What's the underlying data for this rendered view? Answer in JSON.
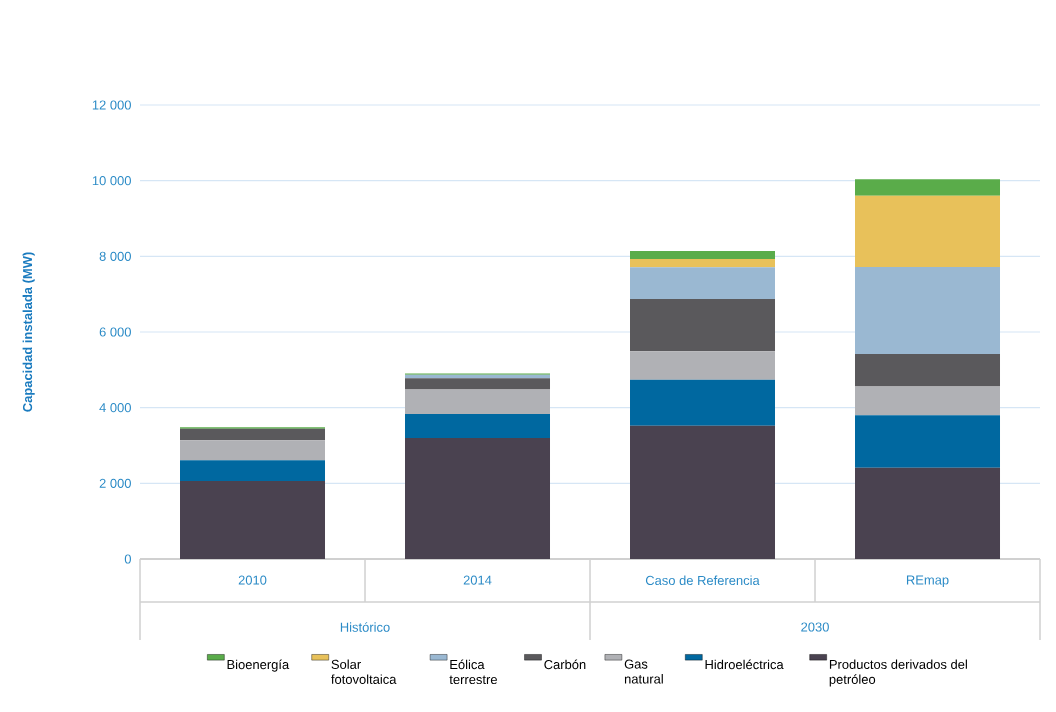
{
  "chart_data": {
    "type": "bar",
    "stacked": true,
    "ylabel": "Capacidad instalada (MW)",
    "categories": [
      "2010",
      "2014",
      "Caso de Referencia",
      "REmap"
    ],
    "annotations": [
      "Histórico",
      "2030"
    ],
    "series": [
      {
        "name": "Productos derivados del petróleo",
        "color": "#4a4250",
        "values": [
          2060,
          3200,
          3520,
          2410
        ]
      },
      {
        "name": "Hidroeléctrica",
        "color": "#0068a0",
        "values": [
          550,
          630,
          1220,
          1390
        ]
      },
      {
        "name": "Gas natural",
        "color": "#b0b1b5",
        "values": [
          530,
          650,
          750,
          760
        ]
      },
      {
        "name": "Carbón",
        "color": "#5a595c",
        "values": [
          300,
          300,
          1380,
          860
        ]
      },
      {
        "name": "Eólica terrestre",
        "color": "#9ab8d2",
        "values": [
          0,
          90,
          840,
          2300
        ]
      },
      {
        "name": "Solar fotovoltaica",
        "color": "#e8c15a",
        "values": [
          0,
          0,
          220,
          1880
        ]
      },
      {
        "name": "Bioenergía",
        "color": "#5aac4a",
        "values": [
          40,
          30,
          210,
          440
        ]
      }
    ],
    "ylim": [
      0,
      12000
    ],
    "yticks": [
      {
        "value": 0,
        "label": "0"
      },
      {
        "value": 2000,
        "label": "2 000"
      },
      {
        "value": 4000,
        "label": "4 000"
      },
      {
        "value": 6000,
        "label": "6 000"
      },
      {
        "value": 8000,
        "label": "8 000"
      },
      {
        "value": 10000,
        "label": "10 000"
      },
      {
        "value": 12000,
        "label": "12 000"
      }
    ],
    "grid": "y",
    "legend": "bottom"
  }
}
